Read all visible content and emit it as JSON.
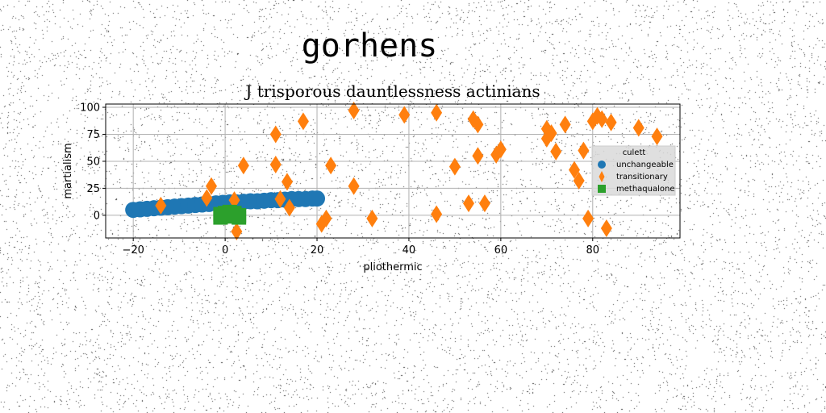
{
  "figure_title": "gorhens",
  "chart_data": {
    "type": "scatter",
    "title": "J trisporous dauntlessness actinians",
    "xlabel": "pliothermic",
    "ylabel": "martialism",
    "xlim": [
      -26,
      99
    ],
    "ylim": [
      -21,
      103
    ],
    "xticks": [
      -20,
      0,
      20,
      40,
      60,
      80
    ],
    "yticks": [
      0,
      25,
      50,
      75,
      100
    ],
    "grid": true,
    "legend": {
      "title": "culett",
      "placement": "right"
    },
    "colors": {
      "unchangeable": "#1f77b4",
      "transitionary": "#ff7f0e",
      "methaqualone": "#2ca02c",
      "grid": "#b0b0b0"
    },
    "series": [
      {
        "name": "unchangeable",
        "marker": "circle",
        "points": [
          [
            -20,
            5
          ],
          [
            -18.5,
            5.5
          ],
          [
            -17,
            6
          ],
          [
            -15.5,
            6.5
          ],
          [
            -14,
            7
          ],
          [
            -12.5,
            7.5
          ],
          [
            -11,
            8
          ],
          [
            -9.5,
            8.5
          ],
          [
            -8,
            9
          ],
          [
            -6.5,
            9.5
          ],
          [
            -5,
            10
          ],
          [
            -3.5,
            10.5
          ],
          [
            -2,
            11
          ],
          [
            -0.5,
            11.5
          ],
          [
            1,
            12
          ],
          [
            2.5,
            12
          ],
          [
            4,
            12.5
          ],
          [
            5.5,
            13
          ],
          [
            7,
            13
          ],
          [
            8.5,
            13.5
          ],
          [
            10,
            14
          ],
          [
            11.5,
            14
          ],
          [
            13,
            14.5
          ],
          [
            14.5,
            15
          ],
          [
            16,
            15
          ],
          [
            17.5,
            15
          ],
          [
            19,
            15.5
          ],
          [
            20,
            15.5
          ]
        ]
      },
      {
        "name": "transitionary",
        "marker": "thin_diamond",
        "points": [
          [
            -14,
            9
          ],
          [
            -4,
            16
          ],
          [
            -3,
            27
          ],
          [
            2,
            14
          ],
          [
            2.5,
            -15
          ],
          [
            4,
            46
          ],
          [
            11,
            75
          ],
          [
            11,
            47
          ],
          [
            12,
            15
          ],
          [
            13.5,
            31
          ],
          [
            14,
            7
          ],
          [
            17,
            87
          ],
          [
            21,
            -8
          ],
          [
            22,
            -3
          ],
          [
            23,
            46
          ],
          [
            28,
            97
          ],
          [
            28,
            27
          ],
          [
            32,
            -3
          ],
          [
            39,
            93
          ],
          [
            46,
            95
          ],
          [
            46,
            1
          ],
          [
            50,
            45
          ],
          [
            53,
            11
          ],
          [
            54,
            89
          ],
          [
            55,
            84
          ],
          [
            55,
            55
          ],
          [
            56.5,
            11
          ],
          [
            59,
            56
          ],
          [
            60,
            61
          ],
          [
            70,
            80
          ],
          [
            70,
            71
          ],
          [
            71,
            76
          ],
          [
            72,
            59
          ],
          [
            74,
            84
          ],
          [
            76,
            42
          ],
          [
            77,
            32
          ],
          [
            78,
            60
          ],
          [
            79,
            -3
          ],
          [
            80,
            87
          ],
          [
            81,
            92
          ],
          [
            82,
            89
          ],
          [
            83,
            -12
          ],
          [
            84,
            86
          ],
          [
            90,
            81
          ],
          [
            94,
            73
          ]
        ]
      },
      {
        "name": "methaqualone",
        "marker": "square",
        "points": [
          [
            -1,
            -2
          ],
          [
            0,
            0
          ],
          [
            1,
            1
          ],
          [
            2,
            -1
          ],
          [
            3,
            0
          ],
          [
            1,
            3
          ],
          [
            0,
            2
          ],
          [
            2,
            2
          ],
          [
            -1,
            1
          ],
          [
            3,
            -2
          ]
        ]
      }
    ]
  }
}
